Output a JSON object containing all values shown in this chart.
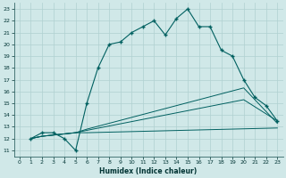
{
  "xlabel": "Humidex (Indice chaleur)",
  "bg_color": "#d0e8e8",
  "grid_color": "#b0d0d0",
  "line_color": "#006060",
  "xlim": [
    -0.5,
    23.5
  ],
  "ylim": [
    10.5,
    23.5
  ],
  "xticks": [
    0,
    1,
    2,
    3,
    4,
    5,
    6,
    7,
    8,
    9,
    10,
    11,
    12,
    13,
    14,
    15,
    16,
    17,
    18,
    19,
    20,
    21,
    22,
    23
  ],
  "yticks": [
    11,
    12,
    13,
    14,
    15,
    16,
    17,
    18,
    19,
    20,
    21,
    22,
    23
  ],
  "line1_x": [
    1,
    2,
    3,
    4,
    5,
    6,
    7,
    8,
    9,
    10,
    11,
    12,
    13,
    14,
    15,
    16,
    17,
    18,
    19,
    20,
    21,
    22,
    23
  ],
  "line1_y": [
    12,
    12.5,
    12.5,
    12,
    11,
    15,
    18,
    20,
    20.2,
    21.0,
    21.5,
    22.0,
    20.8,
    22.2,
    23.0,
    21.5,
    21.5,
    19.5,
    19.0,
    17.0,
    15.5,
    14.8,
    13.5
  ],
  "line2_x": [
    1,
    2,
    3,
    4,
    5,
    6,
    23
  ],
  "line2_y": [
    12,
    12.2,
    12.3,
    12.4,
    12.5,
    12.5,
    12.9
  ],
  "line3_x": [
    1,
    2,
    3,
    4,
    5,
    6,
    20,
    23
  ],
  "line3_y": [
    12,
    12.2,
    12.3,
    12.4,
    12.5,
    12.7,
    15.3,
    13.5
  ],
  "line4_x": [
    1,
    2,
    3,
    4,
    5,
    6,
    20,
    23
  ],
  "line4_y": [
    12,
    12.2,
    12.3,
    12.4,
    12.5,
    12.8,
    16.3,
    13.3
  ]
}
